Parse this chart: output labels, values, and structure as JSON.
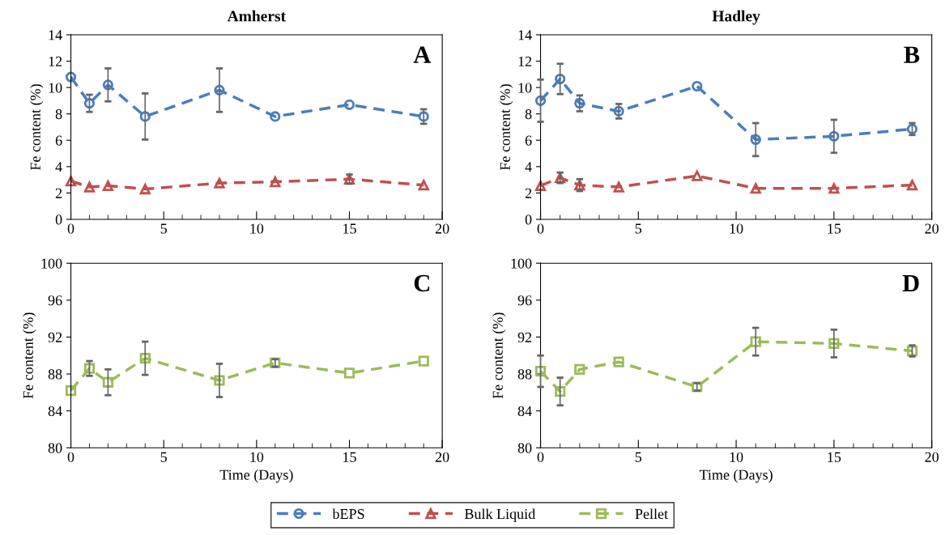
{
  "chart_data": [
    {
      "type": "line",
      "title": "Amherst",
      "ylabel": "Fe content (%)",
      "xlim": [
        0,
        20
      ],
      "xticks": [
        0,
        5,
        10,
        15,
        20
      ],
      "ylim": [
        0,
        14
      ],
      "yticks": [
        0,
        2,
        4,
        6,
        8,
        10,
        12,
        14
      ],
      "x": [
        0,
        1,
        2,
        4,
        8,
        11,
        15,
        19
      ],
      "line_style": "dashed",
      "legend": "bottom",
      "annotations": [
        "A"
      ],
      "series": [
        {
          "name": "bEPS",
          "color": "#4a7ebb",
          "marker": "circle",
          "values": [
            10.8,
            8.8,
            10.2,
            7.8,
            9.8,
            7.8,
            8.7,
            7.8
          ],
          "errors": [
            null,
            0.65,
            1.25,
            1.75,
            1.65,
            null,
            null,
            0.55
          ]
        },
        {
          "name": "Bulk Liquid",
          "color": "#c0504d",
          "marker": "triangle",
          "values": [
            2.9,
            2.45,
            2.55,
            2.3,
            2.75,
            2.85,
            3.05,
            2.6
          ],
          "errors": [
            null,
            null,
            null,
            null,
            null,
            null,
            0.35,
            null
          ]
        }
      ]
    },
    {
      "type": "line",
      "title": "Hadley",
      "ylabel": "Fe content (%)",
      "xlim": [
        0,
        20
      ],
      "xticks": [
        0,
        5,
        10,
        15,
        20
      ],
      "ylim": [
        0,
        14
      ],
      "yticks": [
        0,
        2,
        4,
        6,
        8,
        10,
        12,
        14
      ],
      "x": [
        0,
        1,
        2,
        4,
        8,
        11,
        15,
        19
      ],
      "line_style": "dashed",
      "legend": "bottom",
      "annotations": [
        "B"
      ],
      "series": [
        {
          "name": "bEPS",
          "color": "#4a7ebb",
          "marker": "circle",
          "values": [
            9.0,
            10.65,
            8.8,
            8.2,
            10.1,
            6.05,
            6.3,
            6.85
          ],
          "errors": [
            1.6,
            1.15,
            0.6,
            0.55,
            null,
            1.25,
            1.25,
            0.45
          ]
        },
        {
          "name": "Bulk Liquid",
          "color": "#c0504d",
          "marker": "triangle",
          "values": [
            2.55,
            3.15,
            2.6,
            2.45,
            3.3,
            2.35,
            2.35,
            2.6
          ],
          "errors": [
            null,
            0.4,
            0.45,
            null,
            null,
            null,
            null,
            null
          ]
        }
      ]
    },
    {
      "type": "line",
      "xlabel": "Time (Days)",
      "ylabel": "Fe content (%)",
      "xlim": [
        0,
        20
      ],
      "xticks": [
        0,
        5,
        10,
        15,
        20
      ],
      "ylim": [
        80,
        100
      ],
      "yticks": [
        80,
        84,
        88,
        92,
        96,
        100
      ],
      "x": [
        0,
        1,
        2,
        4,
        8,
        11,
        15,
        19
      ],
      "line_style": "dashed",
      "legend": "bottom",
      "annotations": [
        "C"
      ],
      "series": [
        {
          "name": "Pellet",
          "color": "#9bbb59",
          "marker": "square",
          "values": [
            86.2,
            88.6,
            87.1,
            89.7,
            87.3,
            89.2,
            88.1,
            89.4
          ],
          "errors": [
            null,
            0.8,
            1.4,
            1.8,
            1.8,
            0.4,
            null,
            null
          ]
        }
      ]
    },
    {
      "type": "line",
      "xlabel": "Time (Days)",
      "ylabel": "Fe content (%)",
      "xlim": [
        0,
        20
      ],
      "xticks": [
        0,
        5,
        10,
        15,
        20
      ],
      "ylim": [
        80,
        100
      ],
      "yticks": [
        80,
        84,
        88,
        92,
        96,
        100
      ],
      "x": [
        0,
        1,
        2,
        4,
        8,
        11,
        15,
        19
      ],
      "line_style": "dashed",
      "legend": "bottom",
      "annotations": [
        "D"
      ],
      "series": [
        {
          "name": "Pellet",
          "color": "#9bbb59",
          "marker": "square",
          "values": [
            88.3,
            86.1,
            88.5,
            89.3,
            86.6,
            91.5,
            91.3,
            90.5
          ],
          "errors": [
            1.7,
            1.5,
            null,
            null,
            0.4,
            1.5,
            1.5,
            0.6
          ]
        }
      ]
    }
  ]
}
